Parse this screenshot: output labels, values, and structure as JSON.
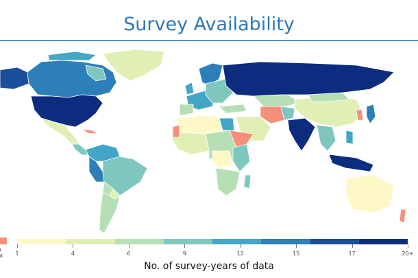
{
  "title": "Survey Availability",
  "legend": {
    "ticks": [
      "1",
      "4",
      "6",
      "9",
      "12",
      "15",
      "17",
      "20+"
    ],
    "colors": [
      "#fdf8c6",
      "#e0efb4",
      "#b6dfb6",
      "#7dc7bf",
      "#43a6c6",
      "#2c7fb8",
      "#1b4e9c",
      "#0c2c80"
    ],
    "no_data_label_1": "data",
    "no_data_label_2": "tified",
    "no_data_color": "#f4907a",
    "axis_title": "No. of survey-years of data"
  },
  "map": {
    "ocean": "#ffffff",
    "border": "#ffffff"
  }
}
